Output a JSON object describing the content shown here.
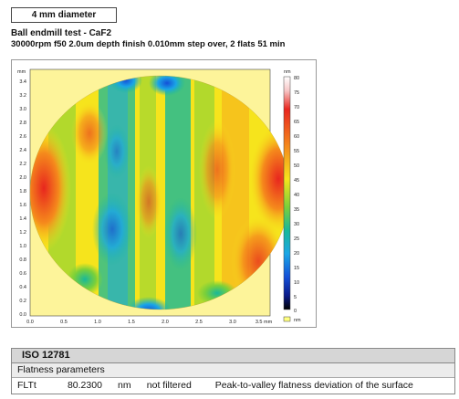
{
  "header": {
    "diameter_label": "4 mm diameter",
    "test_title": "Ball endmill test - CaF2",
    "test_params": "30000rpm f50 2.0um depth finish 0.010mm step over, 2 flats 51 min"
  },
  "plot": {
    "x_unit": "mm",
    "y_unit": "mm",
    "x_ticks": [
      "0.0",
      "0.5",
      "1.0",
      "1.5",
      "2.0",
      "2.5",
      "3.0",
      "3.5 mm"
    ],
    "y_ticks": [
      "0.0",
      "0.2",
      "0.4",
      "0.6",
      "0.8",
      "1.0",
      "1.2",
      "1.4",
      "1.6",
      "1.8",
      "2.0",
      "2.2",
      "2.4",
      "2.6",
      "2.8",
      "3.0",
      "3.2",
      "3.4"
    ],
    "colorbar_unit": "nm",
    "colorbar_ticks": [
      "80",
      "75",
      "70",
      "65",
      "60",
      "55",
      "50",
      "45",
      "40",
      "35",
      "30",
      "25",
      "20",
      "15",
      "10",
      "5",
      "0"
    ],
    "nodata_unit": "nm",
    "colors": {
      "background": "#fdf49a",
      "nodata": "#ffff80"
    }
  },
  "iso": {
    "title": "ISO 12781",
    "subtitle": "Flatness parameters",
    "row": {
      "name": "FLTt",
      "value": "80.2300",
      "unit": "nm",
      "filter": "not filtered",
      "description": "Peak-to-valley flatness deviation of the surface"
    }
  }
}
